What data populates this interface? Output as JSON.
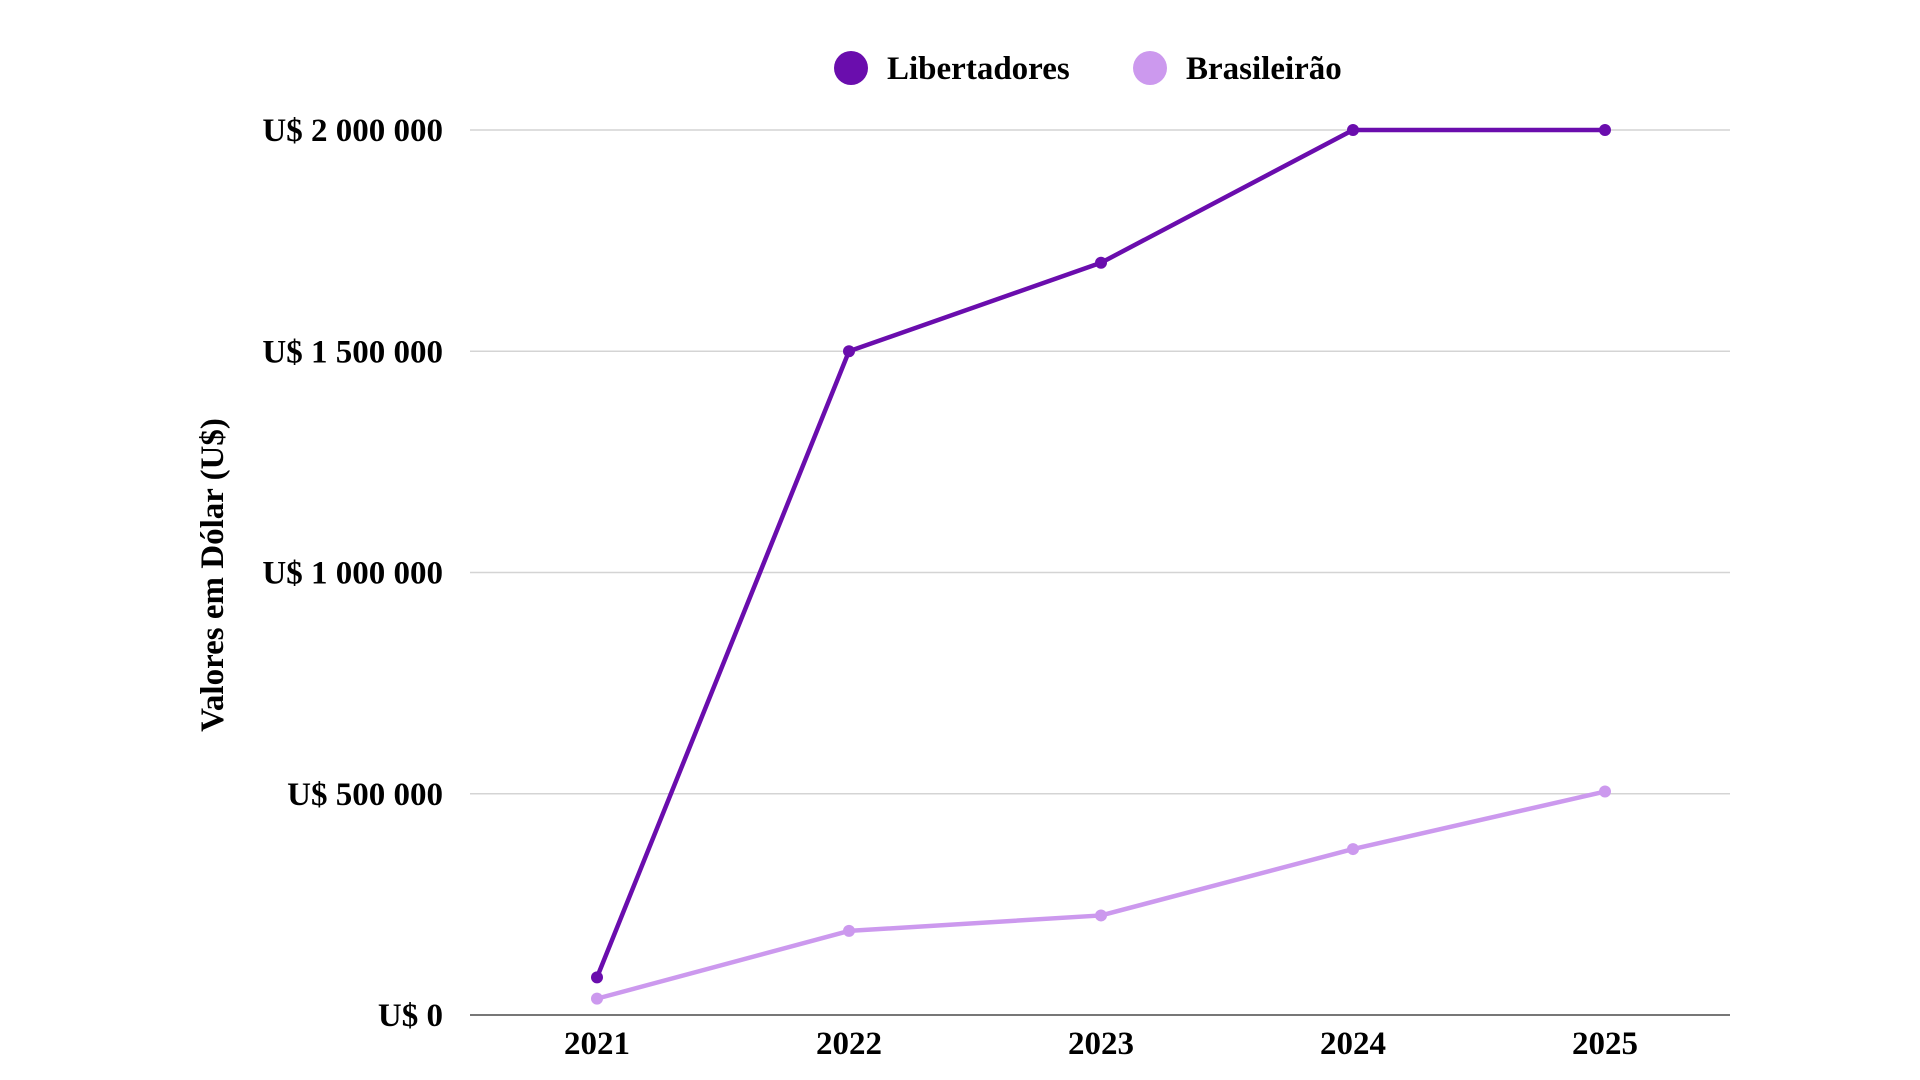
{
  "chart_data": {
    "type": "line",
    "title": "",
    "xlabel": "",
    "ylabel": "Valores em Dólar (U$)",
    "x": [
      "2021",
      "2022",
      "2023",
      "2024",
      "2025"
    ],
    "ylim": [
      0,
      2000000
    ],
    "yticks": [
      0,
      500000,
      1000000,
      1500000,
      2000000
    ],
    "ytick_labels": [
      "U$ 0",
      "U$ 500 000",
      "U$ 1 000 000",
      "U$ 1 500 000",
      "U$ 2 000 000"
    ],
    "grid": true,
    "legend_position": "top-center",
    "series": [
      {
        "name": "Libertadores",
        "color": "#6a0dad",
        "values": [
          85000,
          1500000,
          1700000,
          2000000,
          2000000
        ]
      },
      {
        "name": "Brasileirão",
        "color": "#cc99ee",
        "values": [
          37000,
          190000,
          225000,
          375000,
          505000
        ]
      }
    ]
  }
}
